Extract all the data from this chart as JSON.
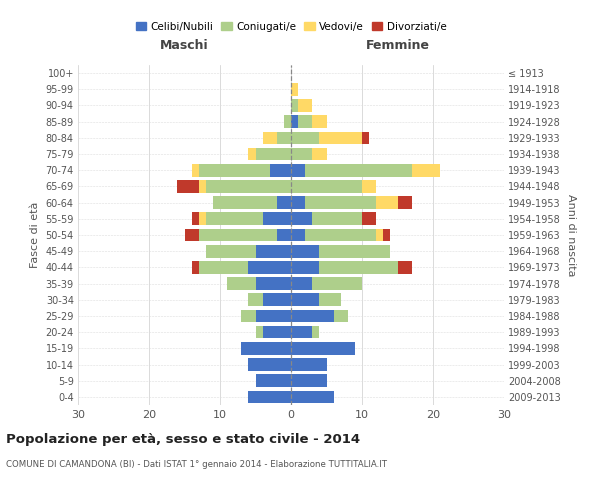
{
  "age_groups": [
    "0-4",
    "5-9",
    "10-14",
    "15-19",
    "20-24",
    "25-29",
    "30-34",
    "35-39",
    "40-44",
    "45-49",
    "50-54",
    "55-59",
    "60-64",
    "65-69",
    "70-74",
    "75-79",
    "80-84",
    "85-89",
    "90-94",
    "95-99",
    "100+"
  ],
  "birth_years": [
    "2009-2013",
    "2004-2008",
    "1999-2003",
    "1994-1998",
    "1989-1993",
    "1984-1988",
    "1979-1983",
    "1974-1978",
    "1969-1973",
    "1964-1968",
    "1959-1963",
    "1954-1958",
    "1949-1953",
    "1944-1948",
    "1939-1943",
    "1934-1938",
    "1929-1933",
    "1924-1928",
    "1919-1923",
    "1914-1918",
    "≤ 1913"
  ],
  "maschi": {
    "celibi": [
      6,
      5,
      6,
      7,
      4,
      5,
      4,
      5,
      6,
      5,
      2,
      4,
      2,
      0,
      3,
      0,
      0,
      0,
      0,
      0,
      0
    ],
    "coniugati": [
      0,
      0,
      0,
      0,
      1,
      2,
      2,
      4,
      7,
      7,
      11,
      8,
      9,
      12,
      10,
      5,
      2,
      1,
      0,
      0,
      0
    ],
    "vedovi": [
      0,
      0,
      0,
      0,
      0,
      0,
      0,
      0,
      0,
      0,
      0,
      1,
      0,
      1,
      1,
      1,
      2,
      0,
      0,
      0,
      0
    ],
    "divorziati": [
      0,
      0,
      0,
      0,
      0,
      0,
      0,
      0,
      1,
      0,
      2,
      1,
      0,
      3,
      0,
      0,
      0,
      0,
      0,
      0,
      0
    ]
  },
  "femmine": {
    "nubili": [
      6,
      5,
      5,
      9,
      3,
      6,
      4,
      3,
      4,
      4,
      2,
      3,
      2,
      0,
      2,
      0,
      0,
      1,
      0,
      0,
      0
    ],
    "coniugate": [
      0,
      0,
      0,
      0,
      1,
      2,
      3,
      7,
      11,
      10,
      10,
      7,
      10,
      10,
      15,
      3,
      4,
      2,
      1,
      0,
      0
    ],
    "vedove": [
      0,
      0,
      0,
      0,
      0,
      0,
      0,
      0,
      0,
      0,
      1,
      0,
      3,
      2,
      4,
      2,
      6,
      2,
      2,
      1,
      0
    ],
    "divorziate": [
      0,
      0,
      0,
      0,
      0,
      0,
      0,
      0,
      2,
      0,
      1,
      2,
      2,
      0,
      0,
      0,
      1,
      0,
      0,
      0,
      0
    ]
  },
  "colors": {
    "celibi_nubili": "#4472C4",
    "coniugati": "#AECF8B",
    "vedovi": "#FFD966",
    "divorziati": "#C0392B"
  },
  "xlim": 30,
  "title": "Popolazione per età, sesso e stato civile - 2014",
  "subtitle": "COMUNE DI CAMANDONA (BI) - Dati ISTAT 1° gennaio 2014 - Elaborazione TUTTITALIA.IT",
  "ylabel_left": "Fasce di età",
  "ylabel_right": "Anni di nascita",
  "xlabel_maschi": "Maschi",
  "xlabel_femmine": "Femmine",
  "legend_labels": [
    "Celibi/Nubili",
    "Coniugati/e",
    "Vedovi/e",
    "Divorziati/e"
  ],
  "background_color": "#FFFFFF",
  "grid_color": "#CCCCCC"
}
